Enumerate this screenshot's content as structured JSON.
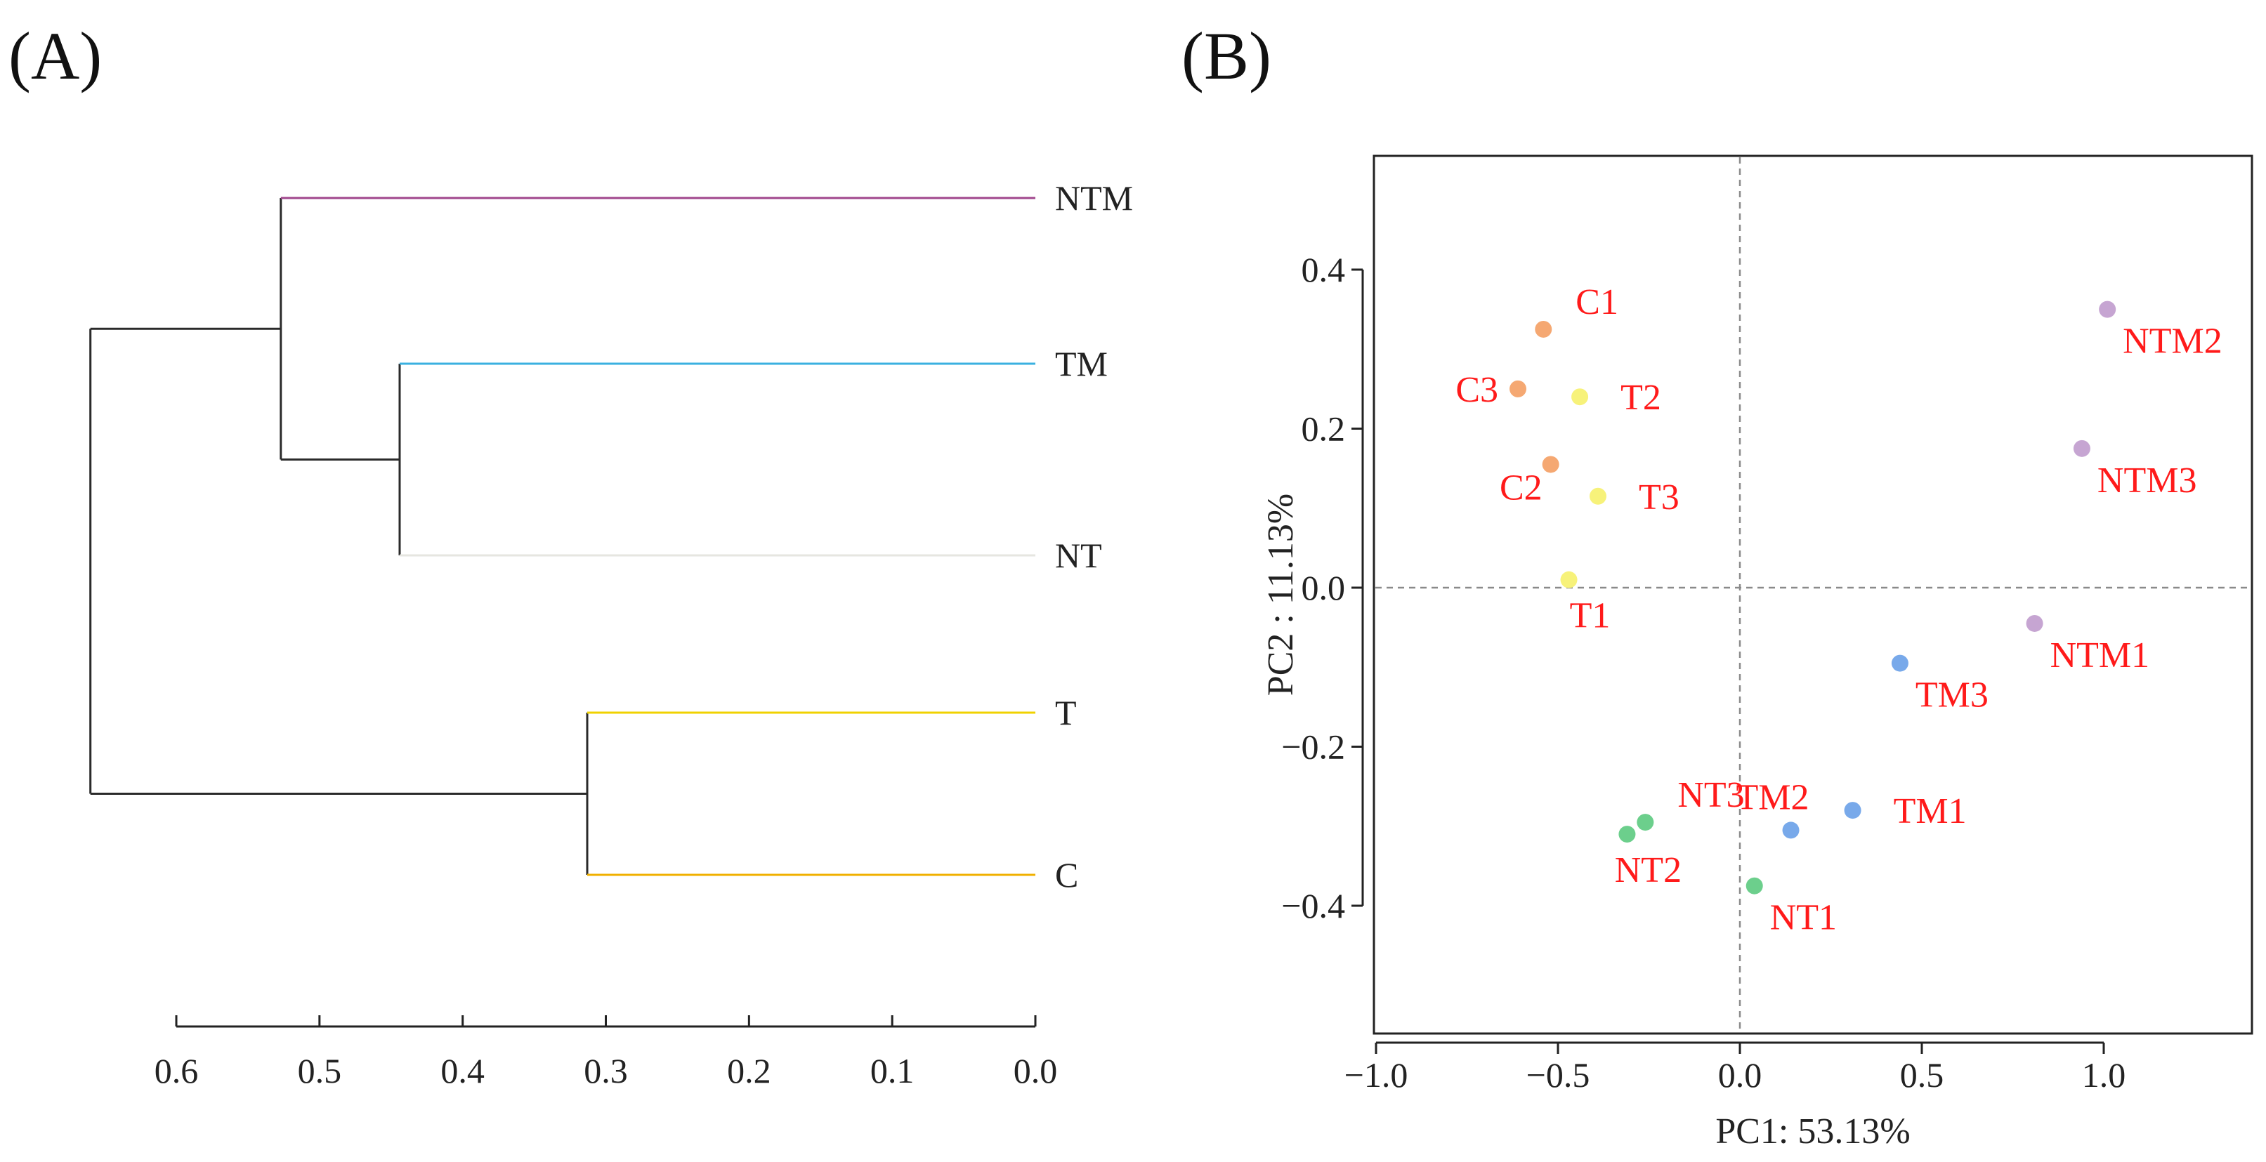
{
  "chart_data": [
    {
      "type": "dendrogram",
      "panel_label": "(A)",
      "leaves": [
        {
          "name": "NTM",
          "color": "#a0468c"
        },
        {
          "name": "TM",
          "color": "#3ab0e0"
        },
        {
          "name": "NT",
          "color": "#e6e6e0"
        },
        {
          "name": "T",
          "color": "#f0d200"
        },
        {
          "name": "C",
          "color": "#f0b000"
        }
      ],
      "merges": [
        {
          "left": "TM",
          "right": "NT",
          "height": 0.444
        },
        {
          "left": "NTM",
          "right": "TM+NT",
          "height": 0.527
        },
        {
          "left": "T",
          "right": "C",
          "height": 0.313
        },
        {
          "left": "NTM+TM+NT",
          "right": "T+C",
          "height": 0.66
        }
      ],
      "branch_color": "#2a2a2a",
      "x_axis": {
        "reversed": true,
        "lim": [
          0.6,
          0.0
        ],
        "ticks": [
          "0.6",
          "0.5",
          "0.4",
          "0.3",
          "0.2",
          "0.1",
          "0.0"
        ],
        "values": [
          0.6,
          0.5,
          0.4,
          0.3,
          0.2,
          0.1,
          0.0
        ]
      }
    },
    {
      "type": "scatter",
      "panel_label": "(B)",
      "xlabel": "PC1: 53.13%",
      "ylabel": "PC2 : 11.13%",
      "xlim": [
        -1.0,
        1.4
      ],
      "ylim": [
        -0.53,
        0.53
      ],
      "x_ticks": [
        "−1.0",
        "−0.5",
        "0.0",
        "0.5",
        "1.0"
      ],
      "x_tick_values": [
        -1.0,
        -0.5,
        0.0,
        0.5,
        1.0
      ],
      "y_ticks": [
        "0.4",
        "0.2",
        "0.0",
        "−0.2",
        "−0.4"
      ],
      "y_tick_values": [
        0.4,
        0.2,
        0.0,
        -0.2,
        -0.4
      ],
      "reference_lines": {
        "x": 0.0,
        "y": 0.0
      },
      "label_color": "#ff1a1a",
      "groups": [
        {
          "name": "C",
          "color": "#f5a872"
        },
        {
          "name": "T",
          "color": "#f7f27a"
        },
        {
          "name": "NT",
          "color": "#6ccf8c"
        },
        {
          "name": "TM",
          "color": "#78a9ea"
        },
        {
          "name": "NTM",
          "color": "#c6a5d2"
        }
      ],
      "points": [
        {
          "label": "C1",
          "group": "C",
          "x": -0.54,
          "y": 0.325,
          "anchor": "top-right"
        },
        {
          "label": "C2",
          "group": "C",
          "x": -0.52,
          "y": 0.155,
          "anchor": "bottom-left"
        },
        {
          "label": "C3",
          "group": "C",
          "x": -0.61,
          "y": 0.25,
          "anchor": "left"
        },
        {
          "label": "T1",
          "group": "T",
          "x": -0.47,
          "y": 0.01,
          "anchor": "bottom"
        },
        {
          "label": "T2",
          "group": "T",
          "x": -0.44,
          "y": 0.24,
          "anchor": "right"
        },
        {
          "label": "T3",
          "group": "T",
          "x": -0.39,
          "y": 0.115,
          "anchor": "right"
        },
        {
          "label": "NT1",
          "group": "NT",
          "x": 0.04,
          "y": -0.375,
          "anchor": "bottom-right"
        },
        {
          "label": "NT2",
          "group": "NT",
          "x": -0.31,
          "y": -0.31,
          "anchor": "bottom"
        },
        {
          "label": "NT3",
          "group": "NT",
          "x": -0.26,
          "y": -0.295,
          "anchor": "top-right"
        },
        {
          "label": "TM1",
          "group": "TM",
          "x": 0.31,
          "y": -0.28,
          "anchor": "right"
        },
        {
          "label": "TM2",
          "group": "TM",
          "x": 0.14,
          "y": -0.305,
          "anchor": "top-left"
        },
        {
          "label": "TM3",
          "group": "TM",
          "x": 0.44,
          "y": -0.095,
          "anchor": "bottom-right"
        },
        {
          "label": "NTM1",
          "group": "NTM",
          "x": 0.81,
          "y": -0.045,
          "anchor": "bottom-right"
        },
        {
          "label": "NTM2",
          "group": "NTM",
          "x": 1.01,
          "y": 0.35,
          "anchor": "bottom-right"
        },
        {
          "label": "NTM3",
          "group": "NTM",
          "x": 0.94,
          "y": 0.175,
          "anchor": "bottom-right"
        }
      ]
    }
  ]
}
